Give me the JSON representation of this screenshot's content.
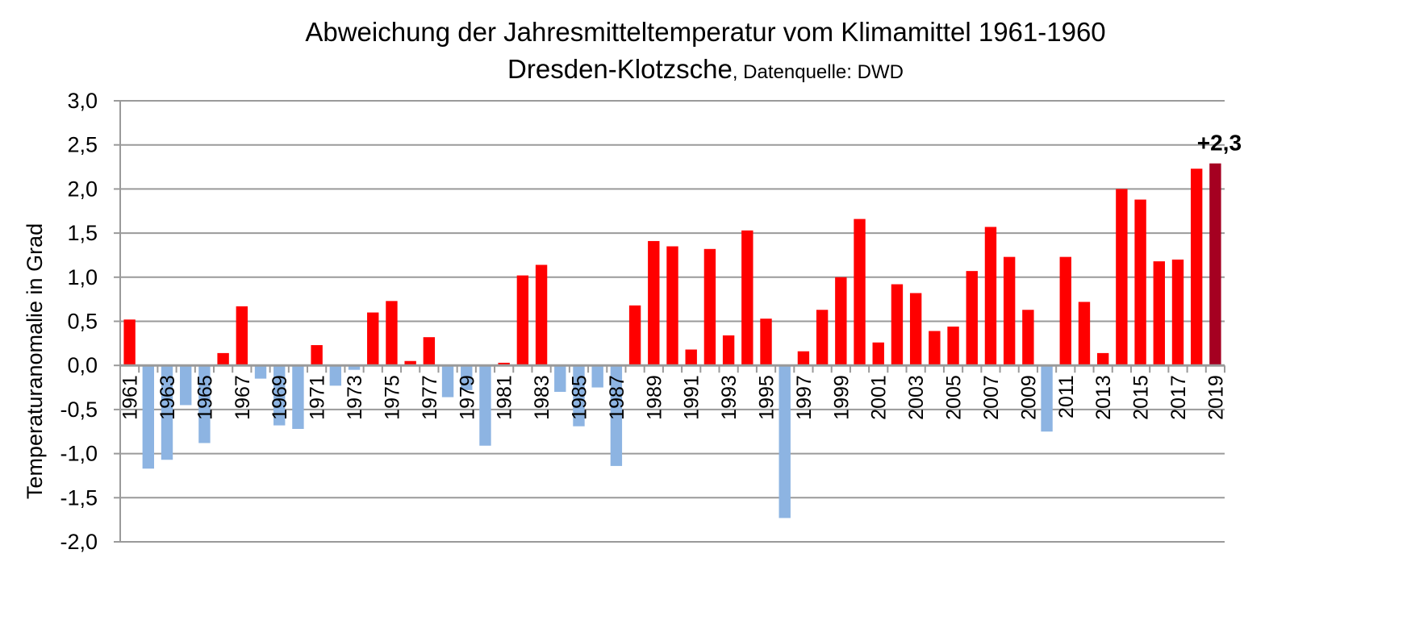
{
  "chart_data": {
    "type": "bar",
    "title": "Abweichung der Jahresmitteltemperatur vom Klimamittel 1961-1960",
    "subtitle_main": "Dresden-Klotzsche",
    "subtitle_source": ", Datenquelle: DWD",
    "ylabel": "Temperaturanomalie in Grad",
    "xlabel": "",
    "ylim": [
      -2.0,
      3.0
    ],
    "y_ticks": [
      "3,0",
      "2,5",
      "2,0",
      "1,5",
      "1,0",
      "0,5",
      "0,0",
      "-0,5",
      "-1,0",
      "-1,5",
      "-2,0"
    ],
    "y_tick_values": [
      3.0,
      2.5,
      2.0,
      1.5,
      1.0,
      0.5,
      0.0,
      -0.5,
      -1.0,
      -1.5,
      -2.0
    ],
    "grid": true,
    "categories": [
      1961,
      1962,
      1963,
      1964,
      1965,
      1966,
      1967,
      1968,
      1969,
      1970,
      1971,
      1972,
      1973,
      1974,
      1975,
      1976,
      1977,
      1978,
      1979,
      1980,
      1981,
      1982,
      1983,
      1984,
      1985,
      1986,
      1987,
      1988,
      1989,
      1990,
      1991,
      1992,
      1993,
      1994,
      1995,
      1996,
      1997,
      1998,
      1999,
      2000,
      2001,
      2002,
      2003,
      2004,
      2005,
      2006,
      2007,
      2008,
      2009,
      2010,
      2011,
      2012,
      2013,
      2014,
      2015,
      2016,
      2017,
      2018,
      2019
    ],
    "x_tick_labels": [
      "1961",
      "1963",
      "1965",
      "1967",
      "1969",
      "1971",
      "1973",
      "1975",
      "1977",
      "1979",
      "1981",
      "1983",
      "1985",
      "1987",
      "1989",
      "1991",
      "1993",
      "1995",
      "1997",
      "1999",
      "2001",
      "2003",
      "2005",
      "2007",
      "2009",
      "2011",
      "2013",
      "2015",
      "2017",
      "2019"
    ],
    "values": [
      0.52,
      -1.17,
      -1.07,
      -0.45,
      -0.88,
      0.14,
      0.67,
      -0.15,
      -0.68,
      -0.72,
      0.23,
      -0.23,
      -0.05,
      0.6,
      0.73,
      0.05,
      0.32,
      -0.36,
      -0.28,
      -0.91,
      0.03,
      1.02,
      1.14,
      -0.3,
      -0.69,
      -0.25,
      -1.14,
      0.68,
      1.41,
      1.35,
      0.18,
      1.32,
      0.34,
      1.53,
      0.53,
      -1.73,
      0.16,
      0.63,
      1.0,
      1.66,
      0.26,
      0.92,
      0.82,
      0.39,
      0.44,
      1.07,
      1.57,
      1.23,
      0.63,
      -0.75,
      1.23,
      0.72,
      0.14,
      2.0,
      1.88,
      1.18,
      1.2,
      2.23,
      2.29
    ],
    "colors": {
      "positive": "#ff0000",
      "negative": "#8db4e2",
      "highlight": "#a50021"
    },
    "highlight_year": 2019,
    "callout": "+2,3"
  }
}
